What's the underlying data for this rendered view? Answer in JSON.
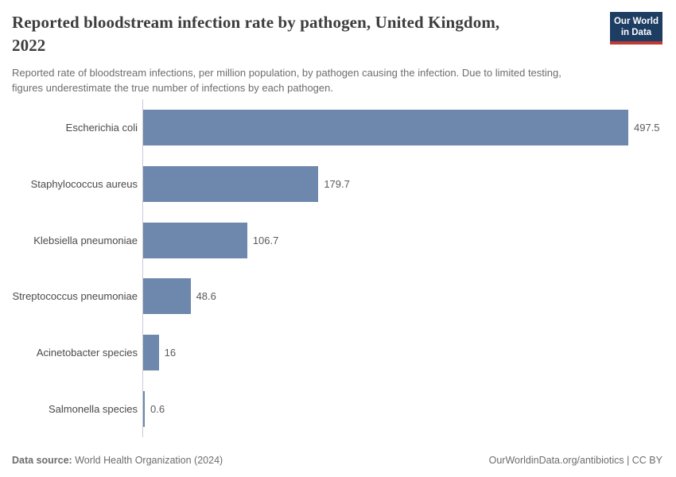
{
  "header": {
    "title_lines": [
      "Reported bloodstream infection rate by pathogen, United Kingdom,",
      "2022"
    ],
    "subtitle_lines": [
      "Reported rate of bloodstream infections, per million population, by pathogen causing the infection. Due to limited testing,",
      "figures underestimate the true number of infections by each pathogen."
    ]
  },
  "logo": {
    "line1": "Our World",
    "line2": "in Data",
    "bg_color": "#1d3d63",
    "stripe_color": "#c23a34"
  },
  "chart_data": {
    "type": "bar",
    "orientation": "horizontal",
    "title": "Reported bloodstream infection rate by pathogen, United Kingdom, 2022",
    "subtitle": "Reported rate of bloodstream infections, per million population, by pathogen causing the infection. Due to limited testing, figures underestimate the true number of infections by each pathogen.",
    "categories": [
      "Escherichia coli",
      "Staphylococcus aureus",
      "Klebsiella pneumoniae",
      "Streptococcus pneumoniae",
      "Acinetobacter species",
      "Salmonella species"
    ],
    "values": [
      497.5,
      179.7,
      106.7,
      48.6,
      16,
      0.6
    ],
    "value_labels": [
      "497.5",
      "179.7",
      "106.7",
      "48.6",
      "16",
      "0.6"
    ],
    "unit": "infections per million population",
    "xlabel": "",
    "ylabel": "",
    "xlim": [
      0,
      500
    ],
    "grid": false,
    "legend": "none",
    "bar_color": "#6d87ad"
  },
  "footer": {
    "source_label": "Data source:",
    "source_text": " World Health Organization (2024)",
    "credit": "OurWorldinData.org/antibiotics | CC BY"
  }
}
